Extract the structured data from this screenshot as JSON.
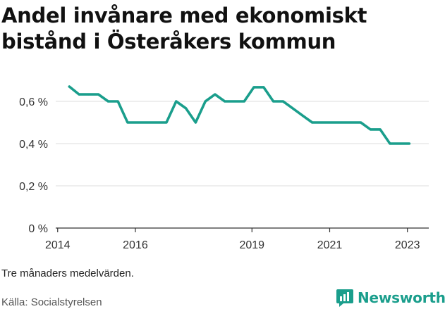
{
  "chart_data": {
    "type": "line",
    "title": "Andel invånare med ekonomiskt bistånd i Österåkers kommun",
    "xlabel": "",
    "ylabel": "",
    "ylim": [
      0,
      0.7
    ],
    "xlim": [
      2013.95,
      2023.55
    ],
    "x_ticks": [
      2014,
      2016,
      2019,
      2021,
      2023
    ],
    "x_tick_labels": [
      "2014",
      "2016",
      "2019",
      "2021",
      "2023"
    ],
    "y_ticks": [
      0,
      0.2,
      0.4,
      0.6
    ],
    "y_tick_labels": [
      "0 %",
      "0,2 %",
      "0,4 %",
      "0,6 %"
    ],
    "grid": true,
    "line_color": "#1a9e8c",
    "series": [
      {
        "x": [
          2014.3,
          2014.55,
          2014.8,
          2015.05,
          2015.3,
          2015.55,
          2015.8,
          2016.05,
          2016.3,
          2016.55,
          2016.8,
          2017.05,
          2017.3,
          2017.55,
          2017.8,
          2018.05,
          2018.3,
          2018.55,
          2018.8,
          2019.05,
          2019.3,
          2019.55,
          2019.8,
          2020.05,
          2020.3,
          2020.55,
          2020.8,
          2021.05,
          2021.3,
          2021.55,
          2021.8,
          2022.05,
          2022.3,
          2022.55,
          2022.8,
          2023.05
        ],
        "values": [
          0.67,
          0.633,
          0.633,
          0.633,
          0.6,
          0.6,
          0.5,
          0.5,
          0.5,
          0.5,
          0.5,
          0.6,
          0.567,
          0.5,
          0.6,
          0.633,
          0.6,
          0.6,
          0.6,
          0.667,
          0.667,
          0.6,
          0.6,
          0.567,
          0.533,
          0.5,
          0.5,
          0.5,
          0.5,
          0.5,
          0.5,
          0.467,
          0.467,
          0.4,
          0.4,
          0.4
        ]
      }
    ]
  },
  "note": "Tre månaders medelvärden.",
  "source": "Källa: Socialstyrelsen",
  "brand": {
    "name": "Newsworthy",
    "icon": "bar-chart-logo-icon",
    "color": "#1a9e8c"
  }
}
